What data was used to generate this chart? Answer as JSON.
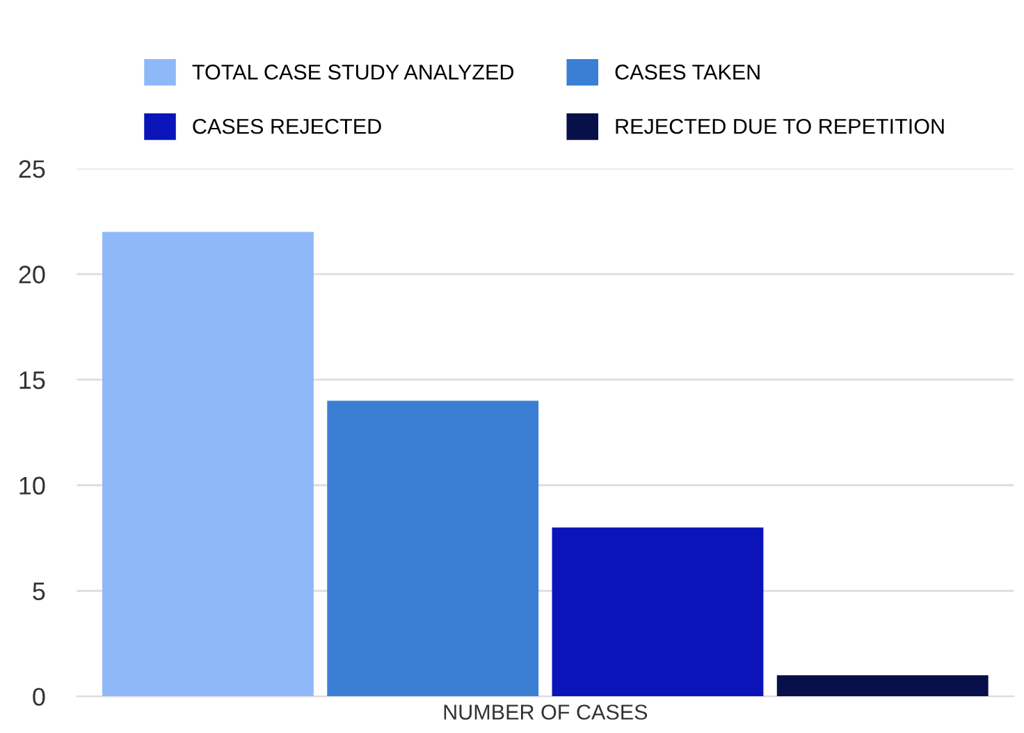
{
  "chart_data": {
    "type": "bar",
    "categories": [
      "NUMBER OF CASES"
    ],
    "series": [
      {
        "name": "TOTAL CASE STUDY ANALYZED",
        "color": "#8fb8f8",
        "values": [
          22
        ]
      },
      {
        "name": "CASES TAKEN",
        "color": "#3b7fd4",
        "values": [
          14
        ]
      },
      {
        "name": "CASES REJECTED",
        "color": "#0a14b8",
        "values": [
          8
        ]
      },
      {
        "name": "REJECTED DUE TO REPETITION",
        "color": "#08104a",
        "values": [
          1
        ]
      }
    ],
    "ylim": [
      0,
      25
    ],
    "yticks": [
      0,
      5,
      10,
      15,
      20,
      25
    ],
    "grid": "y",
    "legend": "top"
  }
}
